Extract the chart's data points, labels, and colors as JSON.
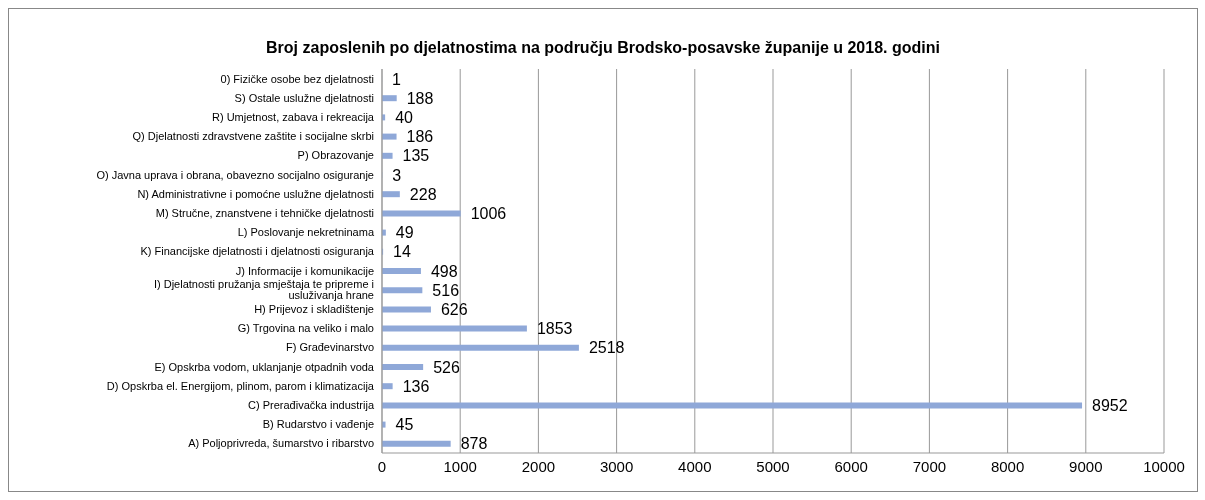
{
  "chart_data": {
    "type": "bar",
    "orientation": "horizontal",
    "title": "Broj zaposlenih po djelatnostima na području Brodsko-posavske županije u 2018. godini",
    "categories": [
      "0) Fizičke osobe bez djelatnosti",
      "S) Ostale uslužne djelatnosti",
      "R) Umjetnost, zabava i rekreacija",
      "Q) Djelatnosti zdravstvene zaštite i socijalne skrbi",
      "P) Obrazovanje",
      "O) Javna uprava i obrana, obavezno socijalno osiguranje",
      "N) Administrativne i pomoćne uslužne djelatnosti",
      "M) Stručne, znanstvene i tehničke djelatnosti",
      "L) Poslovanje nekretninama",
      "K) Financijske djelatnosti i djelatnosti osiguranja",
      "J) Informacije i komunikacije",
      "I) Djelatnosti pružanja smještaja te pripreme i usluživanja hrane",
      "H) Prijevoz i skladištenje",
      "G) Trgovina na veliko i malo",
      "F) Građevinarstvo",
      "E) Opskrba vodom, uklanjanje otpadnih voda",
      "D) Opskrba el. Energijom, plinom, parom i klimatizacija",
      "C) Prerađivačka industrija",
      "B) Rudarstvo i vađenje",
      "A) Poljoprivreda, šumarstvo i ribarstvo"
    ],
    "values": [
      1,
      188,
      40,
      186,
      135,
      3,
      228,
      1006,
      49,
      14,
      498,
      516,
      626,
      1853,
      2518,
      526,
      136,
      8952,
      45,
      878
    ],
    "color": "#8fa8d8",
    "xlim": [
      0,
      10000
    ],
    "xticks": [
      0,
      1000,
      2000,
      3000,
      4000,
      5000,
      6000,
      7000,
      8000,
      9000,
      10000
    ],
    "grid": "x",
    "data_labels": true
  }
}
